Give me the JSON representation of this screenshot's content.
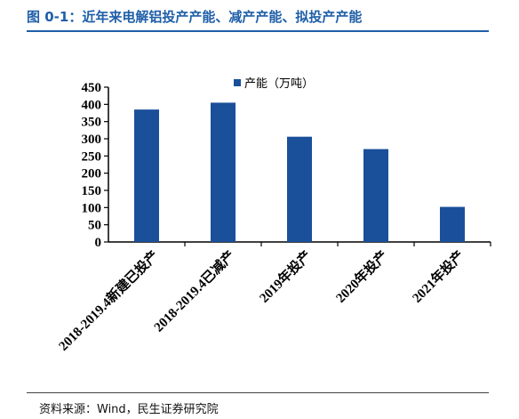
{
  "header": {
    "title": "图 0-1：近年来电解铝投产产能、减产产能、拟投产产能"
  },
  "footer": {
    "source": "资料来源：Wind，民生证券研究院"
  },
  "colors": {
    "bar": "#1a4f9a",
    "accent": "#1f5fa8"
  },
  "chart_data": {
    "type": "bar",
    "title": "",
    "xlabel": "",
    "ylabel": "",
    "categories": [
      "2018-2019.4新建已投产",
      "2018-2019.4已减产",
      "2019年投产",
      "2020年投产",
      "2021年投产"
    ],
    "series": [
      {
        "name": "产能（万吨）",
        "values": [
          385,
          405,
          306,
          270,
          102
        ]
      }
    ],
    "ylim": [
      0,
      450
    ],
    "yticks": [
      "0",
      "50",
      "100",
      "150",
      "200",
      "250",
      "300",
      "350",
      "400",
      "450"
    ],
    "grid": false,
    "legend_position": "top-center"
  }
}
